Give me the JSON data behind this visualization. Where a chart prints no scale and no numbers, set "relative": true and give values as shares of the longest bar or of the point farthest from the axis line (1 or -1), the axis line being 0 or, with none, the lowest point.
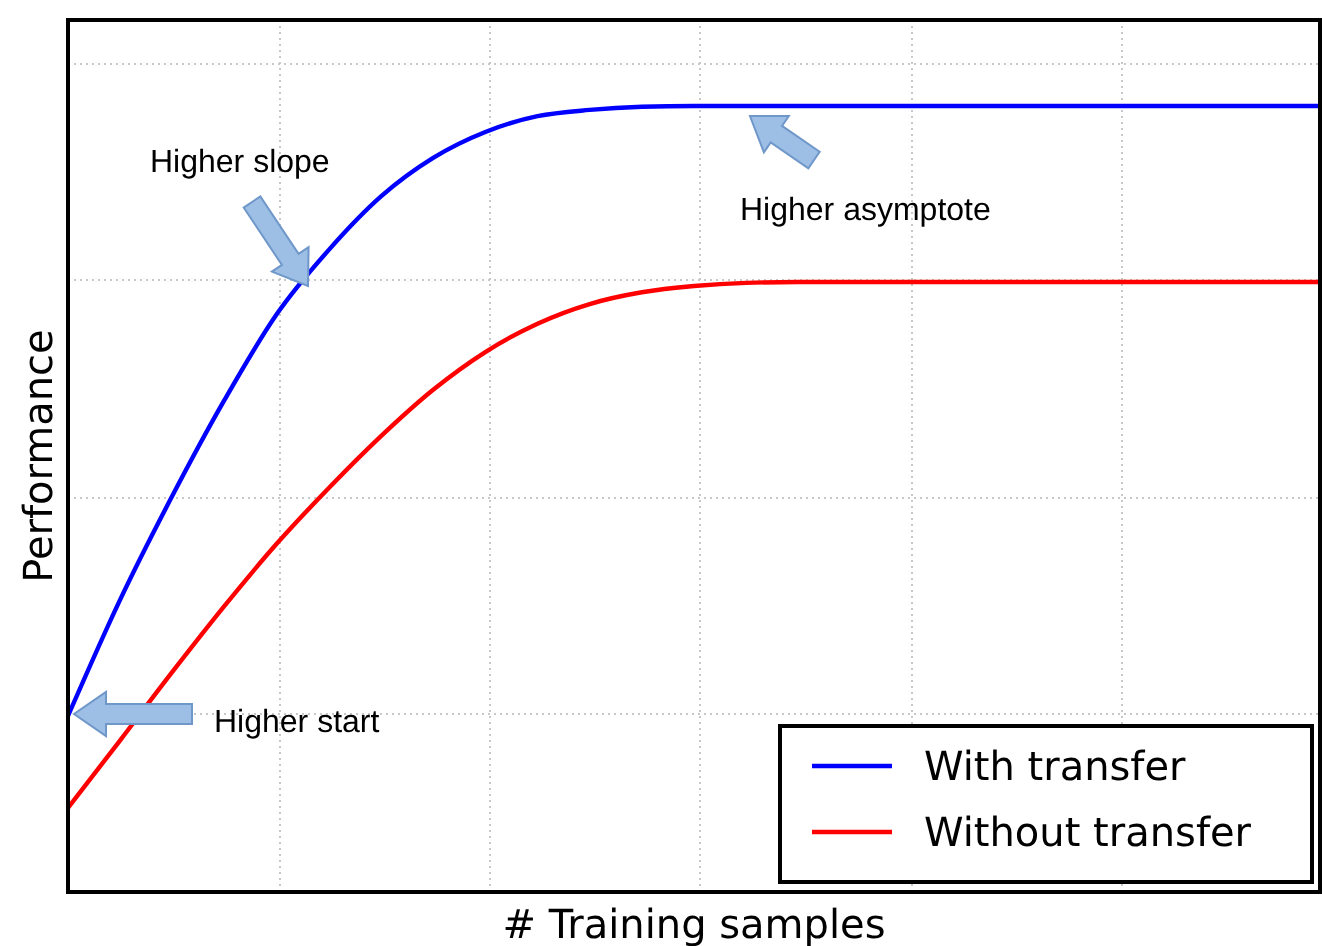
{
  "chart_data": {
    "type": "line",
    "relative": true,
    "xlabel": "# Training samples",
    "ylabel": "Performance",
    "grid": true,
    "legend": "bottom right",
    "marker": "none",
    "line_style": "solid",
    "categories": [
      null,
      null,
      null,
      null,
      null,
      null,
      null,
      null,
      null,
      null,
      null,
      null,
      null,
      null,
      null,
      null,
      null,
      null,
      null,
      null,
      null,
      null,
      null,
      null,
      null
    ],
    "series": [
      {
        "name": "With transfer",
        "color": "#0000ff",
        "values": [
          0.224,
          0.372,
          0.504,
          0.626,
          0.735,
          0.817,
          0.885,
          0.934,
          0.967,
          0.987,
          0.995,
          0.999,
          1,
          1,
          1,
          1,
          1,
          1,
          1,
          1,
          1,
          1,
          1,
          1,
          1
        ]
      },
      {
        "name": "Without transfer",
        "color": "#ff0000",
        "values": [
          0.107,
          0.193,
          0.28,
          0.364,
          0.443,
          0.514,
          0.58,
          0.639,
          0.687,
          0.723,
          0.748,
          0.763,
          0.771,
          0.775,
          0.776,
          0.776,
          0.776,
          0.776,
          0.776,
          0.776,
          0.776,
          0.776,
          0.776,
          0.776,
          0.776
        ]
      }
    ],
    "annotations": [
      "Higher slope",
      "Higher asymptote",
      "Higher start"
    ]
  }
}
